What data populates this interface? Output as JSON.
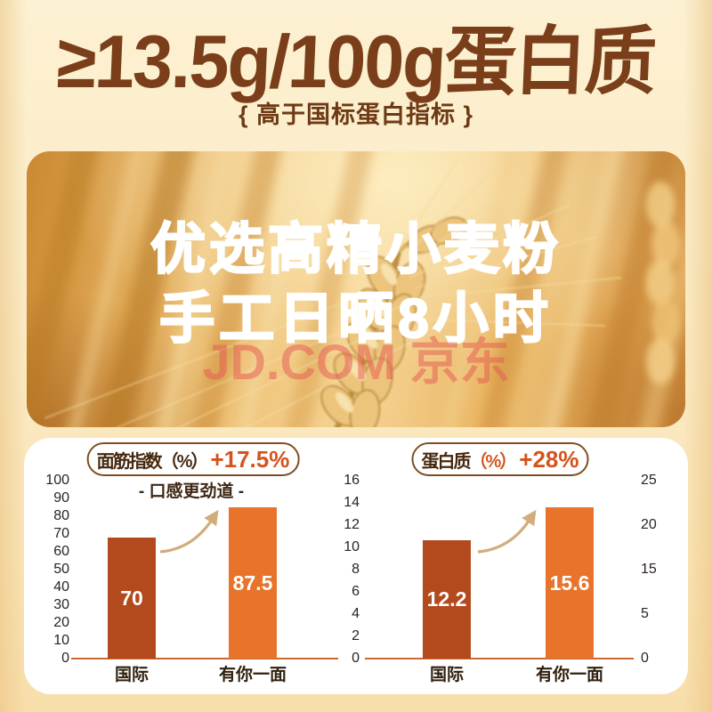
{
  "header": {
    "headline": "≥13.5g/100g蛋白质",
    "subheadline": "{ 高于国标蛋白指标 }"
  },
  "hero": {
    "line1": "优选高精小麦粉",
    "line2": "手工日晒8小时",
    "watermark": "JD.COM 京东"
  },
  "colors": {
    "heading_brown": "#7A3E1A",
    "bar_dark_rust": "#B34A1E",
    "bar_orange": "#E8742B",
    "accent_orange": "#D4541D",
    "axis_line": "#C9682F",
    "arrow_tan": "#D2AC7C",
    "panel_white": "#FFFFFF",
    "background_cream": "#FBEBC6"
  },
  "chart_data": [
    {
      "type": "bar",
      "title": "面筋指数（%）",
      "delta": "+17.5%",
      "subtitle": "- 口感更劲道 -",
      "categories": [
        "国际",
        "有你一面"
      ],
      "values": [
        70,
        87.5
      ],
      "value_labels": [
        "70",
        "87.5"
      ],
      "bar_colors": [
        "#B34A1E",
        "#E8742B"
      ],
      "y_axis": {
        "min": 0,
        "max": 100,
        "ticks": [
          100,
          90,
          80,
          70,
          60,
          50,
          40,
          30,
          20,
          10,
          0
        ]
      }
    },
    {
      "type": "bar",
      "title": "蛋白质",
      "title_unit": "（%）",
      "delta": "+28%",
      "categories": [
        "国际",
        "有你一面"
      ],
      "values": [
        12.2,
        15.6
      ],
      "value_labels": [
        "12.2",
        "15.6"
      ],
      "bar_colors": [
        "#B34A1E",
        "#E8742B"
      ],
      "y_axis": {
        "min": 0,
        "max": 16,
        "ticks": [
          16,
          14,
          12,
          10,
          8,
          6,
          4,
          2,
          0
        ]
      },
      "y_axis_right": {
        "ticks": [
          25,
          20,
          15,
          5,
          0
        ]
      }
    }
  ]
}
